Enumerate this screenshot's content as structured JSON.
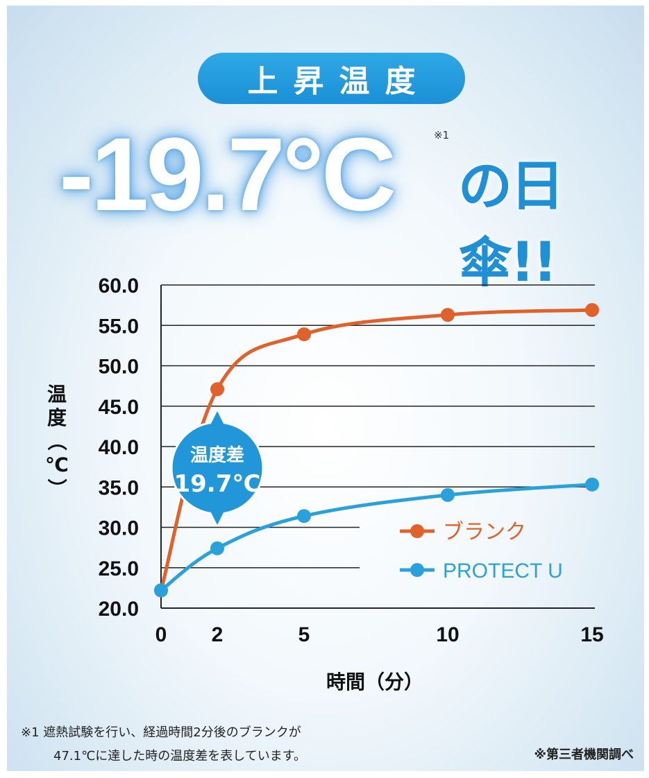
{
  "header": {
    "pill": "上昇温度",
    "big_value": "-19.7°C",
    "note_mark": "※1",
    "suffix": "の日傘!!"
  },
  "chart_data": {
    "type": "line",
    "x": [
      0,
      2,
      5,
      10,
      15
    ],
    "xlabel": "時間（分）",
    "ylabel": "温度（℃）",
    "ylim": [
      20,
      60
    ],
    "y_ticks": [
      "60.0",
      "55.0",
      "50.0",
      "45.0",
      "40.0",
      "35.0",
      "30.0",
      "25.0",
      "20.0"
    ],
    "x_ticks": [
      "0",
      "2",
      "5",
      "10",
      "15"
    ],
    "grid": true,
    "legend_position": "bottom-right",
    "series": [
      {
        "name": "ブランク",
        "color": "#e0612a",
        "values": [
          22.2,
          47.1,
          53.9,
          56.3,
          56.9
        ]
      },
      {
        "name": "PROTECT U",
        "color": "#2aa1dd",
        "values": [
          22.2,
          27.4,
          31.4,
          34.0,
          35.3
        ]
      }
    ],
    "annotation": {
      "line1": "温度差",
      "line2": "19.7℃",
      "color": "#2196d8"
    }
  },
  "footnote": {
    "line1": "※1 遮熱試験を行い、経過時間2分後のブランクが",
    "line2": "47.1℃に達した時の温度差を表しています。"
  },
  "source": "※第三者機関調べ"
}
